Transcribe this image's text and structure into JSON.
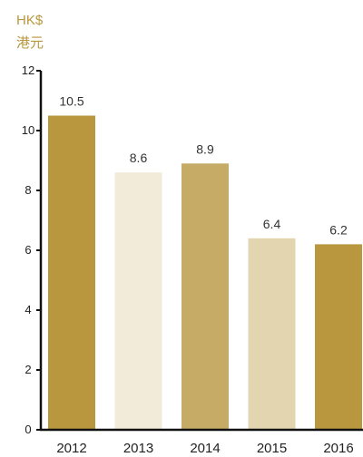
{
  "chart_data": {
    "type": "bar",
    "unit_label": "HK$",
    "unit_label_zh": "港元",
    "categories": [
      "2012",
      "2013",
      "2014",
      "2015",
      "2016"
    ],
    "values": [
      10.5,
      8.6,
      8.9,
      6.4,
      6.2
    ],
    "value_labels": [
      "10.5",
      "8.6",
      "8.9",
      "6.4",
      "6.2"
    ],
    "bar_colors": [
      "#b9973f",
      "#f2ebd9",
      "#c6ab66",
      "#e2d5b0",
      "#b9973f"
    ],
    "ylim": [
      0,
      12
    ],
    "yticks": [
      0,
      2,
      4,
      6,
      8,
      10,
      12
    ],
    "grid": false,
    "legend": "none"
  }
}
